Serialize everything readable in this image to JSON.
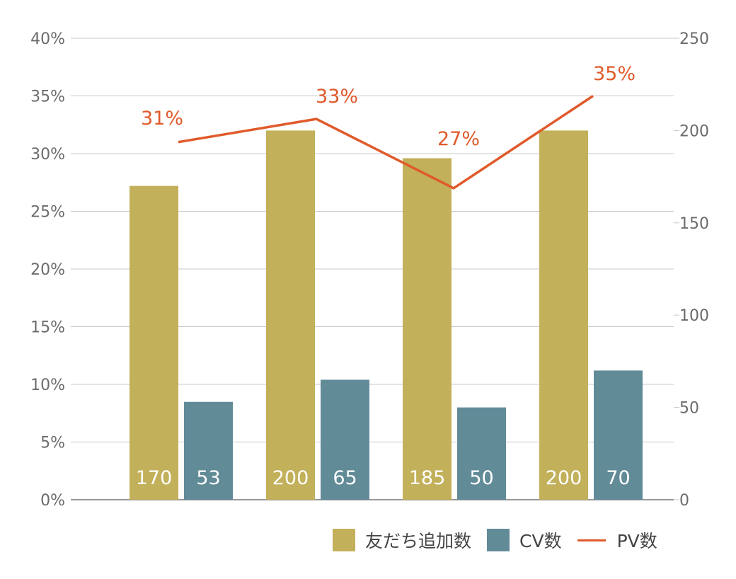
{
  "chart_data": {
    "type": "bar",
    "categories": [
      "",
      "",
      "",
      ""
    ],
    "series": [
      {
        "name": "友だち追加数",
        "type": "bar",
        "axis": "right",
        "color": "#c2b05a",
        "values": [
          170,
          200,
          185,
          200
        ],
        "labels": [
          "170",
          "200",
          "185",
          "200"
        ]
      },
      {
        "name": "CV数",
        "type": "bar",
        "axis": "right",
        "color": "#628b98",
        "values": [
          53,
          65,
          50,
          70
        ],
        "labels": [
          "53",
          "65",
          "50",
          "70"
        ]
      },
      {
        "name": "PV数",
        "type": "line",
        "axis": "left",
        "color": "#e05a2b",
        "values": [
          31,
          33,
          27,
          35
        ],
        "labels": [
          "31%",
          "33%",
          "27%",
          "35%"
        ]
      }
    ],
    "y_left": {
      "ticks": [
        "0%",
        "5%",
        "10%",
        "15%",
        "20%",
        "25%",
        "30%",
        "35%",
        "40%"
      ],
      "ylim": [
        0,
        40
      ]
    },
    "y_right": {
      "ticks": [
        "0",
        "50",
        "100",
        "150",
        "200",
        "250"
      ],
      "ylim": [
        0,
        250
      ]
    },
    "grid": true,
    "legend_position": "bottom-right"
  },
  "legend": {
    "item1": "友だち追加数",
    "item2": "CV数",
    "item3": "PV数"
  }
}
